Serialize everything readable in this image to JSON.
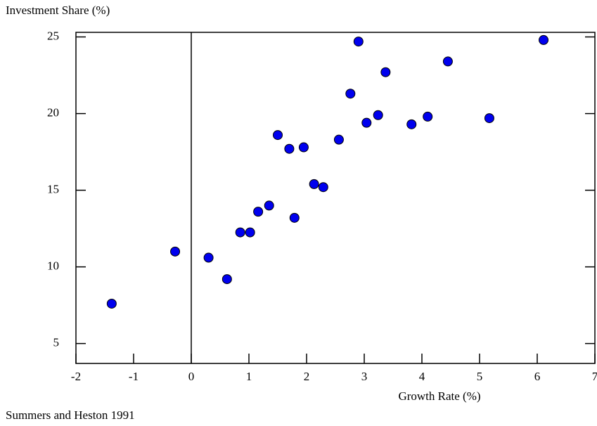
{
  "chart_data": {
    "type": "scatter",
    "y_label": "Investment Share (%)",
    "x_label": "Growth Rate (%)",
    "source": "Summers and Heston 1991",
    "color": "#0000ee",
    "xlim": [
      -2,
      7
    ],
    "xticks": [
      -2,
      -1,
      0,
      1,
      2,
      3,
      4,
      5,
      6,
      7
    ],
    "ylim": [
      3.7,
      25.3
    ],
    "yticks": [
      5,
      10,
      15,
      20,
      25
    ],
    "x": [
      -1.38,
      -0.28,
      0.3,
      0.62,
      0.85,
      1.02,
      1.16,
      1.35,
      1.5,
      1.7,
      1.79,
      1.95,
      2.13,
      2.29,
      2.56,
      2.76,
      2.9,
      3.04,
      3.24,
      3.37,
      3.82,
      4.1,
      4.45,
      5.17,
      6.11
    ],
    "values": [
      7.6,
      11.0,
      10.6,
      9.2,
      12.25,
      12.25,
      13.6,
      14.0,
      18.6,
      17.7,
      13.2,
      17.8,
      15.4,
      15.2,
      18.3,
      21.3,
      24.7,
      19.4,
      19.9,
      22.7,
      19.3,
      19.8,
      23.4,
      19.7,
      24.8
    ]
  }
}
